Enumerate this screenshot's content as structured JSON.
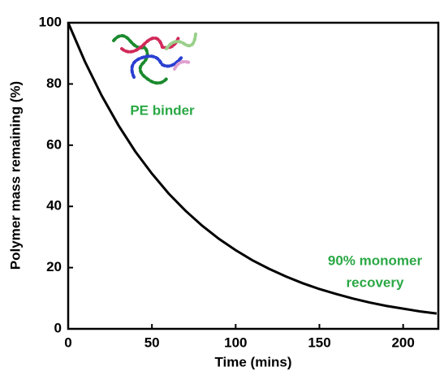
{
  "chart_data": {
    "type": "line",
    "x_label": "Time (mins)",
    "y_label": "Polymer mass remaining (%)",
    "x": [
      0,
      10,
      20,
      30,
      40,
      50,
      60,
      70,
      80,
      90,
      100,
      110,
      120,
      130,
      140,
      150,
      160,
      170,
      180,
      190,
      200,
      210,
      220
    ],
    "series": [
      {
        "color": "#000000",
        "values": [
          100,
          87.3,
          76.2,
          66.5,
          58.0,
          50.7,
          44.2,
          38.6,
          33.7,
          29.4,
          25.7,
          22.4,
          19.6,
          17.1,
          14.9,
          13.0,
          11.4,
          9.9,
          8.6,
          7.5,
          6.6,
          5.7,
          5.0
        ]
      }
    ],
    "xlim": [
      0,
      221
    ],
    "ylim": [
      0,
      100
    ],
    "xticks": [
      0,
      50,
      100,
      150,
      200
    ],
    "yticks": [
      0,
      20,
      40,
      60,
      80,
      100
    ],
    "annotations": [
      "PE binder",
      "90% monomer",
      "recovery"
    ],
    "annotation_color": "#2aa845"
  }
}
